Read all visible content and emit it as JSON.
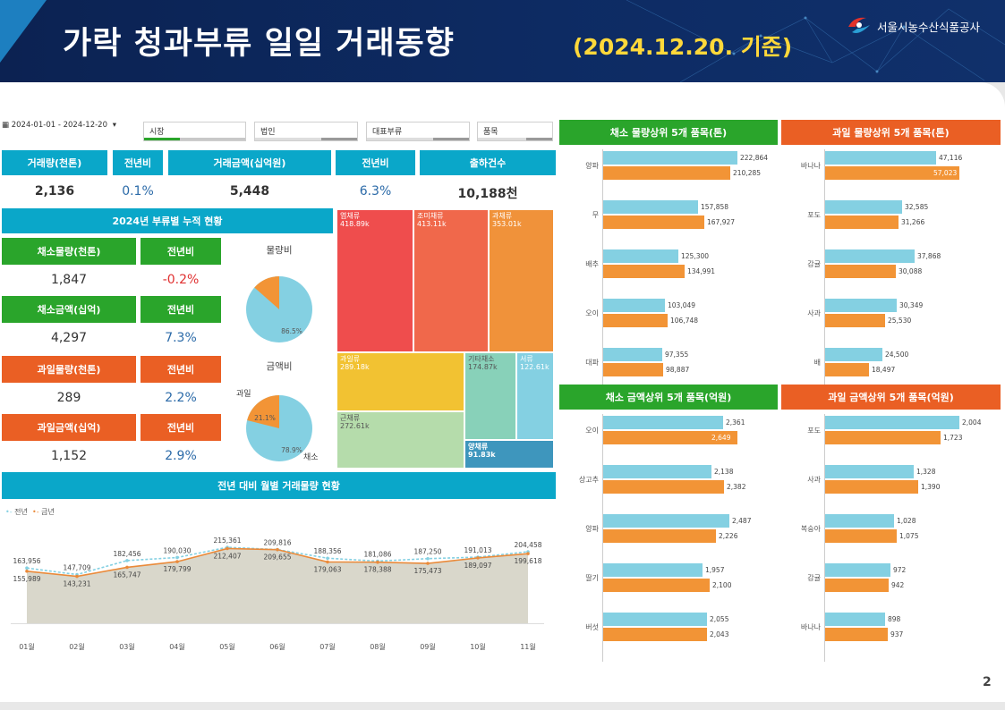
{
  "header": {
    "title": "가락 청과부류 일일 거래동향",
    "date_label": "(2024.12.20. 기준)",
    "org_name": "서울시농수산식품공사"
  },
  "filters": {
    "date_range": "2024-01-01 - 2024-12-20",
    "market": "시장",
    "corp": "법인",
    "category": "대표부류",
    "item": "품목"
  },
  "kpi": [
    {
      "label": "거래량(천톤)",
      "value": "2,136"
    },
    {
      "label": "전년비",
      "value": "0.1%"
    },
    {
      "label": "거래금액(십억원)",
      "value": "5,448"
    },
    {
      "label": "전년비",
      "value": "6.3%"
    },
    {
      "label": "출하건수",
      "value": "10,188천"
    }
  ],
  "cumulative": {
    "title": "2024년 부류별 누적 현황",
    "rows": [
      {
        "label": "채소물량(천톤)",
        "value": "1,847",
        "yoy_label": "전년비",
        "yoy": "-0.2%"
      },
      {
        "label": "채소금액(십억)",
        "value": "4,297",
        "yoy_label": "전년비",
        "yoy": "7.3%"
      },
      {
        "label": "과일물량(천톤)",
        "value": "289",
        "yoy_label": "전년비",
        "yoy": "2.2%"
      },
      {
        "label": "과일금액(십억)",
        "value": "1,152",
        "yoy_label": "전년비",
        "yoy": "2.9%"
      }
    ],
    "pie_volume": {
      "title": "물량비",
      "veg_pct": 86.5,
      "fruit_pct": 13.5,
      "veg_label": "86.5%"
    },
    "pie_amount": {
      "title": "금액비",
      "veg_pct": 78.9,
      "fruit_pct": 21.1,
      "veg_label": "78.9%",
      "fruit_label": "21.1%",
      "veg_name": "채소",
      "fruit_name": "과일"
    }
  },
  "treemap": [
    {
      "name": "엽채류",
      "value": "418.89k",
      "color": "#ef4d4d"
    },
    {
      "name": "조미채류",
      "value": "413.11k",
      "color": "#f0684b"
    },
    {
      "name": "과채류",
      "value": "353.01k",
      "color": "#f0923a"
    },
    {
      "name": "과일류",
      "value": "289.18k",
      "color": "#f2c232"
    },
    {
      "name": "기타채소",
      "value": "174.87k",
      "color": "#88d1b9"
    },
    {
      "name": "서류",
      "value": "122.61k",
      "color": "#84d0e2"
    },
    {
      "name": "근채류",
      "value": "272.61k",
      "color": "#b5dcab"
    },
    {
      "name": "양채류",
      "value": "91.83k",
      "color": "#3e96bd"
    }
  ],
  "monthly": {
    "title": "전년 대비 월별 거래물량 현황",
    "legend_prev": "전년",
    "legend_curr": "금년",
    "color_prev": "#84d0e2",
    "color_curr": "#ea8a3a",
    "chart_data": {
      "type": "line",
      "categories": [
        "01월",
        "02월",
        "03월",
        "04월",
        "05월",
        "06월",
        "07월",
        "08월",
        "09월",
        "10월",
        "11월"
      ],
      "series": [
        {
          "name": "전년",
          "values": [
            163956,
            147709,
            182456,
            190030,
            215361,
            209816,
            188356,
            181086,
            187250,
            191013,
            204458
          ]
        },
        {
          "name": "금년",
          "values": [
            155989,
            143231,
            165747,
            179799,
            212407,
            209655,
            179063,
            178388,
            175473,
            189097,
            199618
          ]
        }
      ],
      "ylim": [
        0,
        230000
      ]
    }
  },
  "top_panels": [
    {
      "title": "채소 물량상위 5개 품목(톤)",
      "color": "#2aa52b",
      "chart_data": {
        "type": "bar",
        "categories": [
          "양파",
          "무",
          "배추",
          "오이",
          "대파"
        ],
        "series": [
          {
            "name": "전년",
            "values": [
              222864,
              157858,
              125300,
              103049,
              97355
            ]
          },
          {
            "name": "금년",
            "values": [
              210285,
              167927,
              134991,
              106748,
              98887
            ]
          }
        ]
      }
    },
    {
      "title": "과일 물량상위 5개 품목(톤)",
      "color": "#ea5f24",
      "chart_data": {
        "type": "bar",
        "categories": [
          "바나나",
          "포도",
          "감귤",
          "사과",
          "배"
        ],
        "series": [
          {
            "name": "전년",
            "values": [
              47116,
              32585,
              37868,
              30349,
              24500
            ]
          },
          {
            "name": "금년",
            "values": [
              57023,
              31266,
              30088,
              25530,
              18497
            ]
          }
        ]
      }
    },
    {
      "title": "채소 금액상위 5개 품목(억원)",
      "color": "#2aa52b",
      "chart_data": {
        "type": "bar",
        "categories": [
          "오이",
          "상고추",
          "양파",
          "딸기",
          "버섯"
        ],
        "series": [
          {
            "name": "전년",
            "values": [
              2361,
              2138,
              2487,
              1957,
              2055
            ]
          },
          {
            "name": "금년",
            "values": [
              2649,
              2382,
              2226,
              2100,
              2043
            ]
          }
        ]
      }
    },
    {
      "title": "과일 금액상위 5개 품목(억원)",
      "color": "#ea5f24",
      "chart_data": {
        "type": "bar",
        "categories": [
          "포도",
          "사과",
          "복숭아",
          "감귤",
          "바나나"
        ],
        "series": [
          {
            "name": "전년",
            "values": [
              2004,
              1328,
              1028,
              972,
              898
            ]
          },
          {
            "name": "금년",
            "values": [
              1723,
              1390,
              1075,
              942,
              937
            ]
          }
        ]
      }
    }
  ],
  "page_number": "2"
}
